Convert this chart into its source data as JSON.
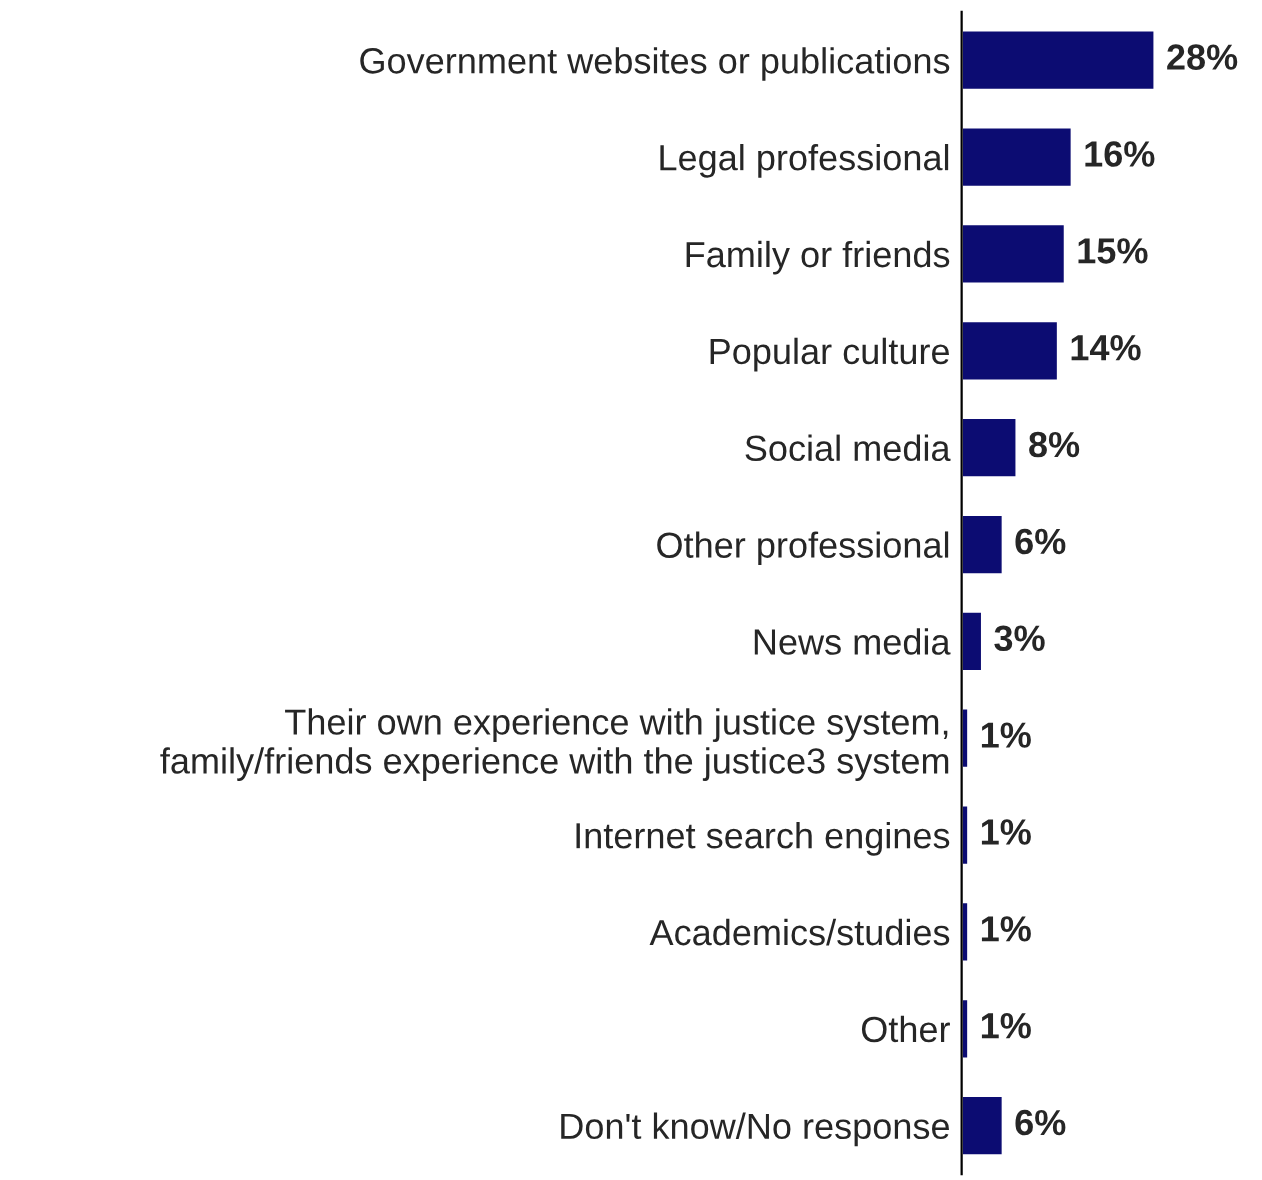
{
  "chart_data": {
    "type": "bar",
    "orientation": "horizontal",
    "color": "#0c0c72",
    "value_labels": [
      "28%",
      "16%",
      "15%",
      "14%",
      "8%",
      "6%",
      "3%",
      "1%",
      "1%",
      "1%",
      "1%",
      "6%"
    ],
    "categories": [
      "Government websites or publications",
      "Legal professional",
      "Family or friends",
      "Popular culture",
      "Social media",
      "Other professional",
      "News media",
      "Their own experience with justice system,\nfamily/friends experience with the justice3 system",
      "Internet search engines",
      "Academics/studies",
      "Other",
      "Don't know/No response"
    ],
    "values": [
      28,
      16,
      15,
      14,
      8,
      6,
      3,
      1,
      1,
      1,
      1,
      6
    ]
  }
}
